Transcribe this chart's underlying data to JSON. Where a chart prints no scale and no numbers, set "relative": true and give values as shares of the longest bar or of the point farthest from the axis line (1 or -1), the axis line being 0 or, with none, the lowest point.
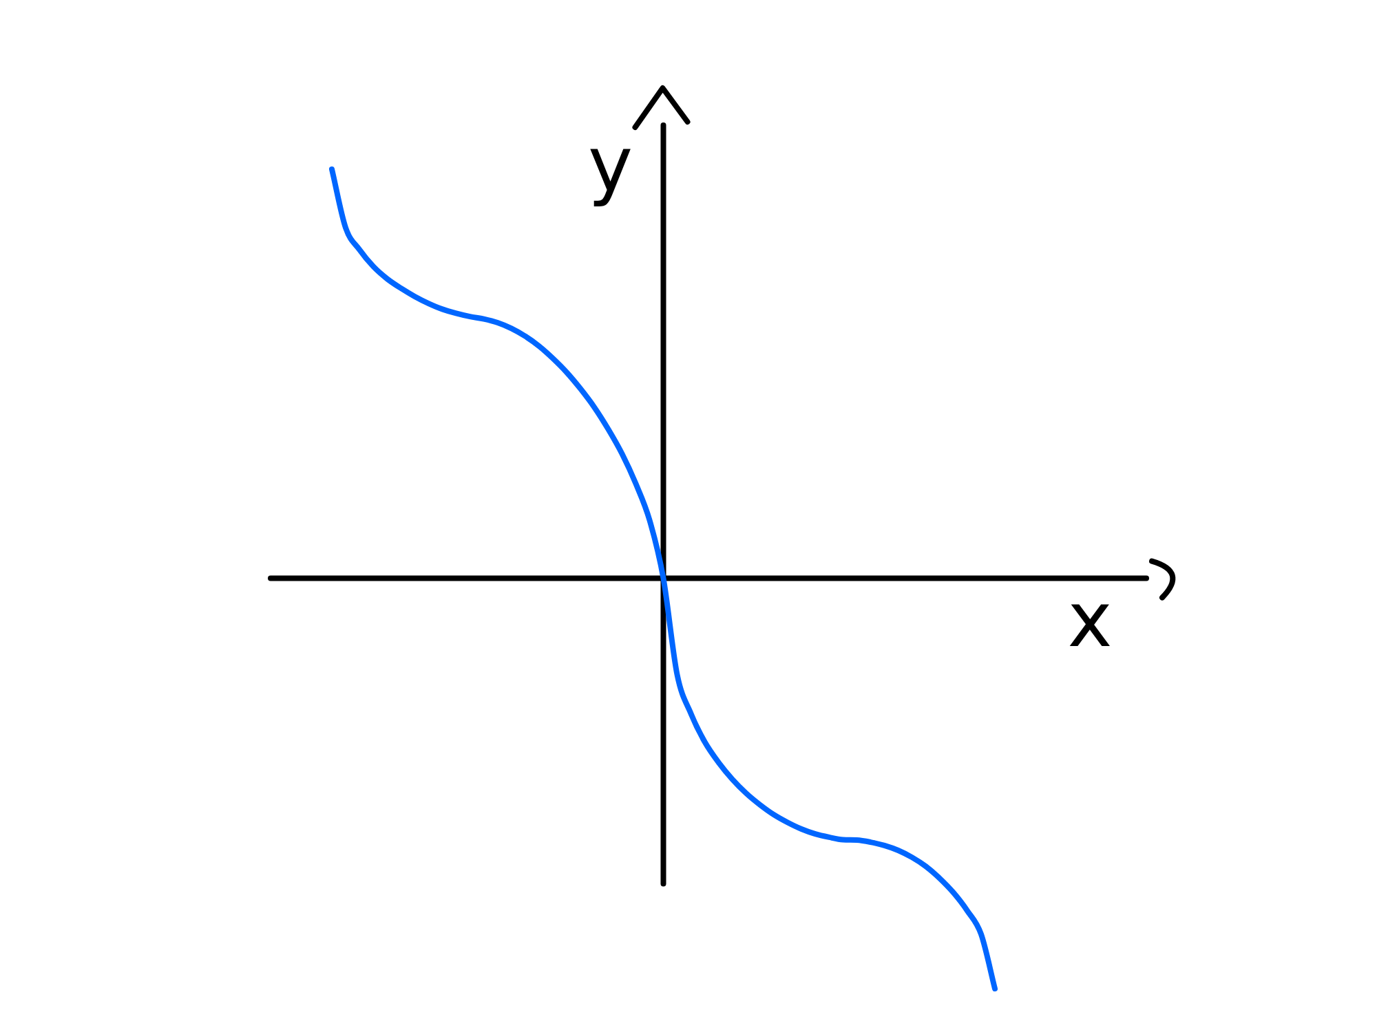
{
  "chart_data": {
    "type": "line",
    "xlabel": "x",
    "ylabel": "y",
    "relative": true,
    "marker": "none",
    "line_style": "solid",
    "categories": [
      null,
      null,
      null,
      null,
      null,
      null,
      null,
      null,
      null,
      null,
      null,
      null,
      null,
      null,
      null,
      null,
      null,
      null,
      null,
      null,
      null,
      null,
      null,
      null,
      null,
      null,
      null,
      null,
      null,
      null,
      null,
      null,
      null,
      null,
      null,
      null,
      null,
      null,
      null,
      null,
      null,
      null,
      null,
      null,
      null,
      null,
      null,
      null,
      null
    ],
    "series": [
      {
        "color": "#0066ff",
        "values": [
          0.997,
          0.854,
          0.801,
          0.76,
          0.73,
          0.707,
          0.687,
          0.67,
          0.656,
          0.646,
          0.638,
          0.632,
          0.623,
          0.609,
          0.59,
          0.566,
          0.536,
          0.502,
          0.462,
          0.417,
          0.364,
          0.304,
          0.231,
          0.142,
          0,
          -0.235,
          -0.33,
          -0.399,
          -0.449,
          -0.49,
          -0.524,
          -0.552,
          -0.576,
          -0.595,
          -0.611,
          -0.623,
          -0.631,
          -0.637,
          -0.638,
          -0.643,
          -0.651,
          -0.663,
          -0.68,
          -0.702,
          -0.731,
          -0.766,
          -0.81,
          -0.867,
          -1
        ]
      }
    ]
  }
}
